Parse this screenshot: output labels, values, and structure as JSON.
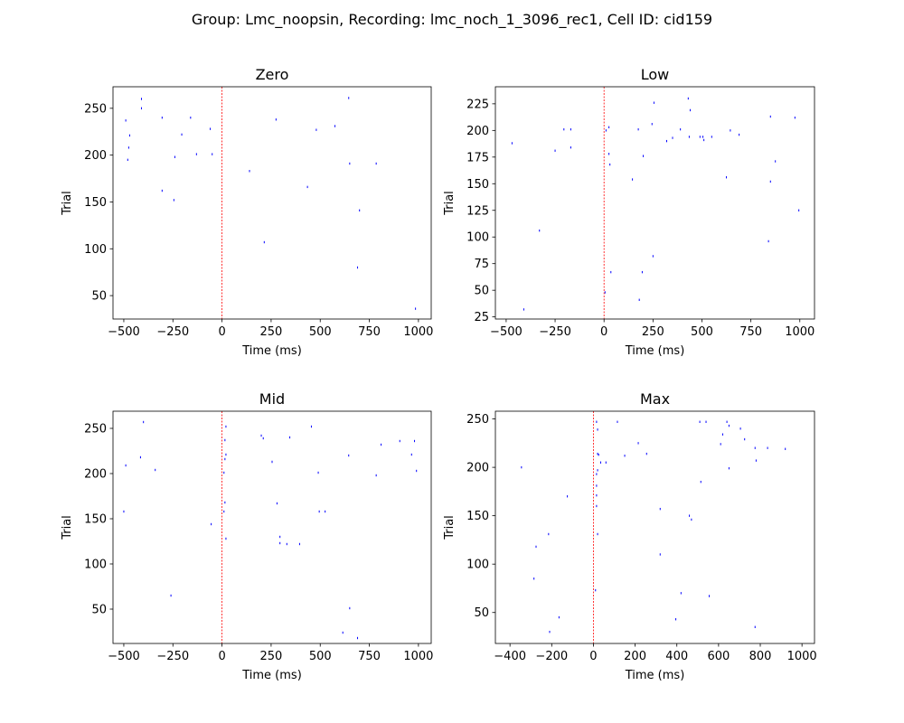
{
  "figure": {
    "suptitle": "Group: Lmc_noopsin, Recording: lmc_noch_1_3096_rec1, Cell ID: cid159"
  },
  "chart_data": [
    {
      "type": "scatter",
      "title": "Zero",
      "xlabel": "Time (ms)",
      "ylabel": "Trial",
      "xlim": [
        -555,
        1065
      ],
      "ylim": [
        25,
        273
      ],
      "xticks": [
        -500,
        -250,
        0,
        250,
        500,
        750,
        1000
      ],
      "yticks": [
        50,
        100,
        150,
        200,
        250
      ],
      "stimulus_line_x": 0,
      "marker_color": "#0000ff",
      "stimulus_color": "#ff0000",
      "points": [
        {
          "x": -410,
          "y": 260
        },
        {
          "x": -410,
          "y": 250
        },
        {
          "x": -490,
          "y": 237
        },
        {
          "x": -470,
          "y": 221
        },
        {
          "x": -475,
          "y": 208
        },
        {
          "x": -480,
          "y": 195
        },
        {
          "x": -305,
          "y": 240
        },
        {
          "x": -160,
          "y": 240
        },
        {
          "x": -205,
          "y": 222
        },
        {
          "x": -60,
          "y": 228
        },
        {
          "x": -240,
          "y": 198
        },
        {
          "x": -130,
          "y": 201
        },
        {
          "x": -50,
          "y": 201
        },
        {
          "x": -305,
          "y": 162
        },
        {
          "x": -245,
          "y": 152
        },
        {
          "x": 140,
          "y": 183
        },
        {
          "x": 275,
          "y": 238
        },
        {
          "x": 215,
          "y": 107
        },
        {
          "x": 435,
          "y": 166
        },
        {
          "x": 480,
          "y": 227
        },
        {
          "x": 575,
          "y": 231
        },
        {
          "x": 645,
          "y": 261
        },
        {
          "x": 650,
          "y": 191
        },
        {
          "x": 785,
          "y": 191
        },
        {
          "x": 700,
          "y": 141
        },
        {
          "x": 690,
          "y": 80
        },
        {
          "x": 985,
          "y": 36
        }
      ]
    },
    {
      "type": "scatter",
      "title": "Low",
      "xlabel": "Time (ms)",
      "ylabel": "Trial",
      "xlim": [
        -555,
        1075
      ],
      "ylim": [
        23,
        241
      ],
      "xticks": [
        -500,
        -250,
        0,
        250,
        500,
        750,
        1000
      ],
      "yticks": [
        25,
        50,
        75,
        100,
        125,
        150,
        175,
        200,
        225
      ],
      "stimulus_line_x": 0,
      "marker_color": "#0000ff",
      "stimulus_color": "#ff0000",
      "points": [
        {
          "x": -470,
          "y": 188
        },
        {
          "x": -330,
          "y": 106
        },
        {
          "x": -410,
          "y": 32
        },
        {
          "x": -250,
          "y": 181
        },
        {
          "x": -205,
          "y": 201
        },
        {
          "x": -170,
          "y": 201
        },
        {
          "x": -170,
          "y": 184
        },
        {
          "x": 10,
          "y": 200
        },
        {
          "x": 25,
          "y": 203
        },
        {
          "x": 25,
          "y": 178
        },
        {
          "x": 30,
          "y": 168
        },
        {
          "x": 35,
          "y": 67
        },
        {
          "x": 5,
          "y": 48
        },
        {
          "x": 145,
          "y": 154
        },
        {
          "x": 175,
          "y": 201
        },
        {
          "x": 200,
          "y": 176
        },
        {
          "x": 245,
          "y": 206
        },
        {
          "x": 255,
          "y": 226
        },
        {
          "x": 195,
          "y": 67
        },
        {
          "x": 250,
          "y": 82
        },
        {
          "x": 180,
          "y": 41
        },
        {
          "x": 320,
          "y": 190
        },
        {
          "x": 350,
          "y": 193
        },
        {
          "x": 390,
          "y": 201
        },
        {
          "x": 430,
          "y": 230
        },
        {
          "x": 440,
          "y": 219
        },
        {
          "x": 435,
          "y": 194
        },
        {
          "x": 490,
          "y": 194
        },
        {
          "x": 505,
          "y": 194
        },
        {
          "x": 510,
          "y": 191
        },
        {
          "x": 550,
          "y": 194
        },
        {
          "x": 625,
          "y": 156
        },
        {
          "x": 645,
          "y": 200
        },
        {
          "x": 690,
          "y": 196
        },
        {
          "x": 850,
          "y": 213
        },
        {
          "x": 850,
          "y": 152
        },
        {
          "x": 840,
          "y": 96
        },
        {
          "x": 875,
          "y": 171
        },
        {
          "x": 975,
          "y": 212
        },
        {
          "x": 995,
          "y": 125
        }
      ]
    },
    {
      "type": "scatter",
      "title": "Mid",
      "xlabel": "Time (ms)",
      "ylabel": "Trial",
      "xlim": [
        -555,
        1065
      ],
      "ylim": [
        12,
        269
      ],
      "xticks": [
        -500,
        -250,
        0,
        250,
        500,
        750,
        1000
      ],
      "yticks": [
        50,
        100,
        150,
        200,
        250
      ],
      "stimulus_line_x": 0,
      "marker_color": "#0000ff",
      "stimulus_color": "#ff0000",
      "points": [
        {
          "x": -400,
          "y": 257
        },
        {
          "x": -490,
          "y": 209
        },
        {
          "x": -415,
          "y": 218
        },
        {
          "x": -340,
          "y": 204
        },
        {
          "x": -500,
          "y": 158
        },
        {
          "x": -260,
          "y": 65
        },
        {
          "x": -55,
          "y": 144
        },
        {
          "x": 20,
          "y": 252
        },
        {
          "x": 15,
          "y": 237
        },
        {
          "x": 20,
          "y": 221
        },
        {
          "x": 15,
          "y": 216
        },
        {
          "x": 10,
          "y": 201
        },
        {
          "x": 15,
          "y": 168
        },
        {
          "x": 10,
          "y": 158
        },
        {
          "x": 20,
          "y": 128
        },
        {
          "x": 200,
          "y": 242
        },
        {
          "x": 210,
          "y": 239
        },
        {
          "x": 255,
          "y": 213
        },
        {
          "x": 280,
          "y": 167
        },
        {
          "x": 295,
          "y": 130
        },
        {
          "x": 295,
          "y": 123
        },
        {
          "x": 330,
          "y": 122
        },
        {
          "x": 345,
          "y": 240
        },
        {
          "x": 395,
          "y": 122
        },
        {
          "x": 455,
          "y": 252
        },
        {
          "x": 490,
          "y": 201
        },
        {
          "x": 495,
          "y": 158
        },
        {
          "x": 525,
          "y": 158
        },
        {
          "x": 645,
          "y": 220
        },
        {
          "x": 650,
          "y": 51
        },
        {
          "x": 615,
          "y": 24
        },
        {
          "x": 690,
          "y": 18
        },
        {
          "x": 785,
          "y": 198
        },
        {
          "x": 810,
          "y": 232
        },
        {
          "x": 905,
          "y": 236
        },
        {
          "x": 965,
          "y": 221
        },
        {
          "x": 980,
          "y": 236
        },
        {
          "x": 990,
          "y": 203
        }
      ]
    },
    {
      "type": "scatter",
      "title": "Max",
      "xlabel": "Time (ms)",
      "ylabel": "Trial",
      "xlim": [
        -470,
        1060
      ],
      "ylim": [
        18,
        258
      ],
      "xticks": [
        -400,
        -200,
        0,
        200,
        400,
        600,
        800,
        1000
      ],
      "yticks": [
        50,
        100,
        150,
        200,
        250
      ],
      "stimulus_line_x": 0,
      "marker_color": "#0000ff",
      "stimulus_color": "#ff0000",
      "points": [
        {
          "x": -345,
          "y": 200
        },
        {
          "x": -275,
          "y": 118
        },
        {
          "x": -285,
          "y": 85
        },
        {
          "x": -215,
          "y": 131
        },
        {
          "x": -210,
          "y": 30
        },
        {
          "x": -165,
          "y": 45
        },
        {
          "x": -125,
          "y": 170
        },
        {
          "x": 15,
          "y": 247
        },
        {
          "x": 20,
          "y": 239
        },
        {
          "x": 20,
          "y": 214
        },
        {
          "x": 25,
          "y": 213
        },
        {
          "x": 20,
          "y": 197
        },
        {
          "x": 15,
          "y": 193
        },
        {
          "x": 15,
          "y": 181
        },
        {
          "x": 15,
          "y": 171
        },
        {
          "x": 15,
          "y": 160
        },
        {
          "x": 20,
          "y": 131
        },
        {
          "x": 10,
          "y": 73
        },
        {
          "x": 35,
          "y": 205
        },
        {
          "x": 60,
          "y": 205
        },
        {
          "x": 115,
          "y": 247
        },
        {
          "x": 150,
          "y": 212
        },
        {
          "x": 215,
          "y": 225
        },
        {
          "x": 255,
          "y": 214
        },
        {
          "x": 320,
          "y": 157
        },
        {
          "x": 320,
          "y": 110
        },
        {
          "x": 420,
          "y": 70
        },
        {
          "x": 395,
          "y": 43
        },
        {
          "x": 460,
          "y": 150
        },
        {
          "x": 470,
          "y": 146
        },
        {
          "x": 510,
          "y": 247
        },
        {
          "x": 540,
          "y": 247
        },
        {
          "x": 515,
          "y": 185
        },
        {
          "x": 555,
          "y": 67
        },
        {
          "x": 610,
          "y": 224
        },
        {
          "x": 620,
          "y": 234
        },
        {
          "x": 640,
          "y": 247
        },
        {
          "x": 650,
          "y": 243
        },
        {
          "x": 650,
          "y": 199
        },
        {
          "x": 705,
          "y": 240
        },
        {
          "x": 725,
          "y": 229
        },
        {
          "x": 775,
          "y": 220
        },
        {
          "x": 780,
          "y": 207
        },
        {
          "x": 775,
          "y": 35
        },
        {
          "x": 835,
          "y": 220
        },
        {
          "x": 920,
          "y": 219
        }
      ]
    }
  ]
}
